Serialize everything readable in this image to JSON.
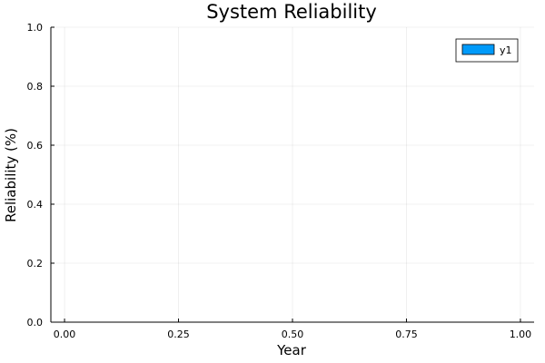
{
  "chart_data": {
    "type": "bar",
    "title": "System Reliability",
    "xlabel": "Year",
    "ylabel": "Reliability (%)",
    "xlim": [
      -0.03,
      1.03
    ],
    "ylim": [
      0,
      1
    ],
    "x_ticks": [
      0.0,
      0.25,
      0.5,
      0.75,
      1.0
    ],
    "x_tick_labels": [
      "0.00",
      "0.25",
      "0.50",
      "0.75",
      "1.00"
    ],
    "y_ticks": [
      0.0,
      0.2,
      0.4,
      0.6,
      0.8,
      1.0
    ],
    "y_tick_labels": [
      "0.0",
      "0.2",
      "0.4",
      "0.6",
      "0.8",
      "1.0"
    ],
    "grid": true,
    "legend_position": "top-right",
    "series": [
      {
        "name": "y1",
        "color": "#009AF9",
        "values": []
      }
    ]
  }
}
